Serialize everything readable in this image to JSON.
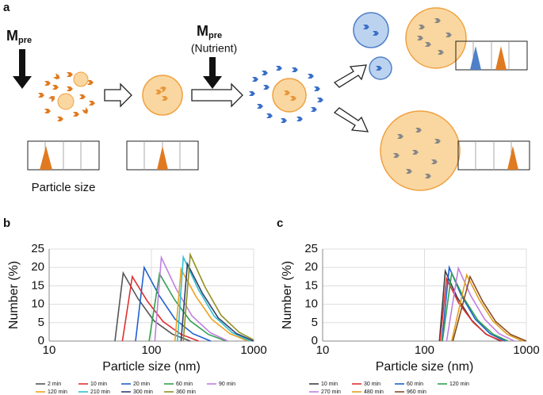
{
  "schematic": {
    "panel_label": "a",
    "reagent_1": {
      "symbol": "M",
      "subscript": "pre"
    },
    "reagent_2": {
      "symbol": "M",
      "subscript": "pre",
      "note": "(Nutrient)"
    },
    "axis_caption": "Particle size"
  },
  "chart_data": [
    {
      "type": "line",
      "panel_label": "b",
      "xlabel": "Particle size (nm)",
      "ylabel": "Number (%)",
      "xscale": "log",
      "xlim": [
        10,
        1000
      ],
      "xticks": [
        10,
        100,
        1000
      ],
      "ylim": [
        0,
        25
      ],
      "yticks": [
        0,
        5,
        10,
        15,
        20,
        25
      ],
      "grid": true,
      "series": [
        {
          "name": "2 min",
          "color": "#555555",
          "x": [
            44,
            53,
            74,
            106,
            160,
            240
          ],
          "values": [
            0,
            18.5,
            11.5,
            5.5,
            1.9,
            0
          ]
        },
        {
          "name": "10 min",
          "color": "#e03030",
          "x": [
            52,
            65,
            91,
            130,
            195,
            290
          ],
          "values": [
            0,
            17.5,
            10.9,
            5.3,
            1.8,
            0
          ]
        },
        {
          "name": "20 min",
          "color": "#2060d0",
          "x": [
            70,
            85,
            119,
            170,
            255,
            380
          ],
          "values": [
            0,
            20,
            12.4,
            6,
            2,
            0
          ]
        },
        {
          "name": "60 min",
          "color": "#30a050",
          "x": [
            95,
            120,
            168,
            240,
            360,
            540
          ],
          "values": [
            0,
            18.3,
            11.3,
            5.5,
            1.8,
            0
          ]
        },
        {
          "name": "90 min",
          "color": "#c080e0",
          "x": [
            108,
            125,
            175,
            250,
            375,
            560
          ],
          "values": [
            0,
            22.7,
            14.1,
            6.8,
            2.3,
            0
          ]
        },
        {
          "name": "120 min",
          "color": "#f0a020",
          "x": [
            170,
            195,
            273,
            390,
            585,
            880
          ],
          "values": [
            0,
            19.5,
            12.1,
            5.9,
            2,
            0
          ]
        },
        {
          "name": "210 min",
          "color": "#30c0d0",
          "x": [
            180,
            205,
            287,
            410,
            615,
            920
          ],
          "values": [
            0,
            22.8,
            14.1,
            6.8,
            2.3,
            0
          ]
        },
        {
          "name": "300 min",
          "color": "#304070",
          "x": [
            195,
            225,
            315,
            450,
            675,
            1000
          ],
          "values": [
            0,
            21,
            13,
            6.3,
            2.1,
            0
          ]
        },
        {
          "name": "360 min",
          "color": "#909020",
          "x": [
            205,
            240,
            336,
            480,
            720,
            1000
          ],
          "values": [
            0,
            23.5,
            14.6,
            7,
            2.4,
            0.3
          ]
        }
      ]
    },
    {
      "type": "line",
      "panel_label": "c",
      "xlabel": "Particle size (nm)",
      "ylabel": "Number (%)",
      "xscale": "log",
      "xlim": [
        10,
        1000
      ],
      "xticks": [
        10,
        100,
        1000
      ],
      "ylim": [
        0,
        25
      ],
      "yticks": [
        0,
        5,
        10,
        15,
        20,
        25
      ],
      "grid": true,
      "series": [
        {
          "name": "10 min",
          "color": "#404040",
          "x": [
            140,
            160,
            210,
            290,
            400,
            560
          ],
          "values": [
            0,
            19,
            11.8,
            5.7,
            1.9,
            0
          ]
        },
        {
          "name": "30 min",
          "color": "#e03030",
          "x": [
            142,
            165,
            215,
            300,
            410,
            580
          ],
          "values": [
            0,
            17,
            10.5,
            5.1,
            1.7,
            0
          ]
        },
        {
          "name": "60 min",
          "color": "#2060d0",
          "x": [
            148,
            175,
            230,
            315,
            440,
            620
          ],
          "values": [
            0,
            20,
            12.4,
            6,
            2,
            0
          ]
        },
        {
          "name": "120 min",
          "color": "#30a050",
          "x": [
            150,
            185,
            245,
            335,
            470,
            660
          ],
          "values": [
            0,
            18.5,
            11.5,
            5.6,
            1.9,
            0
          ]
        },
        {
          "name": "270 min",
          "color": "#c080e0",
          "x": [
            165,
            215,
            285,
            390,
            540,
            760
          ],
          "values": [
            0,
            19.8,
            12.3,
            5.9,
            2,
            0
          ]
        },
        {
          "name": "480 min",
          "color": "#e0a020",
          "x": [
            185,
            260,
            345,
            470,
            650,
            920
          ],
          "values": [
            0,
            18,
            11.2,
            5.4,
            1.8,
            0
          ]
        },
        {
          "name": "960 min",
          "color": "#8b4a20",
          "x": [
            190,
            280,
            370,
            500,
            700,
            1000
          ],
          "values": [
            0,
            17.5,
            10.9,
            5.3,
            1.8,
            0
          ]
        }
      ]
    }
  ]
}
